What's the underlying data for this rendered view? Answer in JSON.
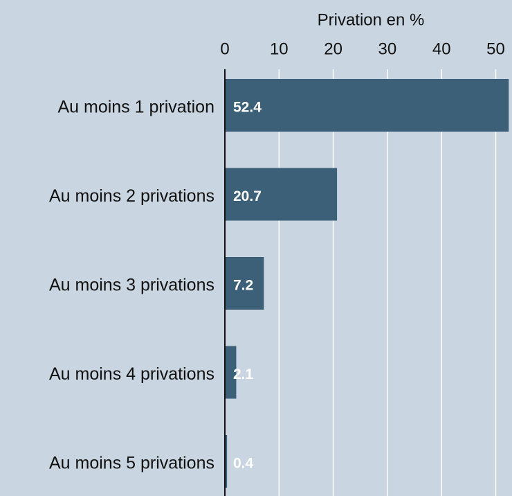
{
  "chart_data": {
    "type": "bar",
    "orientation": "horizontal",
    "x_label": "Privation en %",
    "categories": [
      "Au moins 1 privation",
      "Au moins 2 privations",
      "Au moins 3 privations",
      "Au moins 4 privations",
      "Au moins 5 privations"
    ],
    "values": [
      52.4,
      20.7,
      7.2,
      2.1,
      0.4
    ],
    "color": "#3d6079",
    "xlim": [
      0,
      53
    ],
    "xticks": [
      0,
      10,
      20,
      30,
      40,
      50
    ],
    "grid": true
  }
}
